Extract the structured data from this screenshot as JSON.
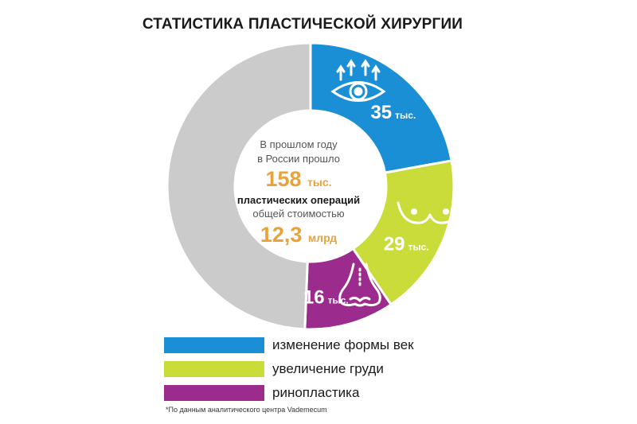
{
  "title": "СТАТИСТИКА ПЛАСТИЧЕСКОЙ ХИРУРГИИ",
  "center": {
    "line1": "В прошлом году",
    "line2": "в России прошло",
    "total_value": "158",
    "total_unit": "тыс.",
    "line3": "пластических операций",
    "line4": "общей стоимостью",
    "cost_value": "12,3",
    "cost_unit": "млрд"
  },
  "chart_data": {
    "type": "pie",
    "donut": true,
    "total": 158,
    "unit": "тыс.",
    "series": [
      {
        "name": "изменение формы век",
        "value": 35,
        "label": "35",
        "color": "#1a8fd6",
        "icon": "eye-icon"
      },
      {
        "name": "увеличение груди",
        "value": 29,
        "label": "29",
        "color": "#c9dc3a",
        "icon": "breast-icon"
      },
      {
        "name": "ринопластика",
        "value": 16,
        "label": "16",
        "color": "#9c2b8e",
        "icon": "nose-icon"
      },
      {
        "name": "",
        "value": 78,
        "label": "",
        "color": "#cbcbcb",
        "icon": ""
      }
    ]
  },
  "legend": {
    "items": [
      {
        "label": "изменение формы век",
        "color": "#1a8fd6"
      },
      {
        "label": "увеличение груди",
        "color": "#c9dc3a"
      },
      {
        "label": "ринопластика",
        "color": "#9c2b8e"
      }
    ]
  },
  "footnote": "*По данным аналитического центра Vademecum",
  "colors": {
    "highlight": "#e8a33a",
    "text": "#1a1a1a",
    "muted": "#555555"
  }
}
